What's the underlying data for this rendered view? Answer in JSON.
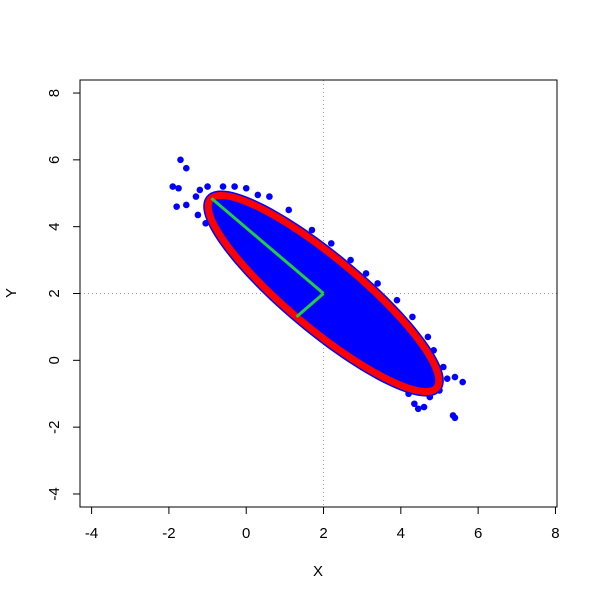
{
  "chart_data": {
    "type": "scatter",
    "x_label": "X",
    "y_label": "Y",
    "xlim": [
      -4.3,
      8.04
    ],
    "ylim": [
      -4.39,
      8.39
    ],
    "xticks": [
      -4,
      -2,
      0,
      2,
      4,
      6,
      8
    ],
    "yticks": [
      -4,
      -2,
      0,
      2,
      4,
      6,
      8
    ],
    "reference_lines": {
      "x": 2,
      "y": 2,
      "color": "#999999"
    },
    "series": [
      {
        "color": "#0000ff",
        "x": [
          -1.7,
          -1.55,
          -1.9,
          -1.75,
          -1.8,
          -1.55,
          -1.3,
          -1.2,
          -1.0,
          -0.6,
          -0.3,
          0.0,
          -1.25,
          -1.05,
          -0.8,
          -0.5,
          -0.2,
          0.1,
          0.5,
          0.6,
          0.8,
          1.2,
          1.35,
          1.7,
          2.3,
          2.7,
          3.0,
          3.4,
          3.7,
          3.95,
          4.2,
          4.35,
          4.45,
          4.6,
          4.75,
          5.0,
          5.2,
          5.4,
          5.6,
          5.35,
          5.4,
          5.1,
          4.85,
          4.7,
          4.3,
          3.9,
          3.4,
          3.1,
          2.7,
          2.2,
          1.7,
          1.1,
          0.6,
          0.3
        ],
        "y": [
          6.0,
          5.75,
          5.2,
          5.15,
          4.6,
          4.65,
          4.9,
          5.1,
          5.2,
          5.2,
          5.2,
          5.15,
          4.35,
          4.1,
          3.95,
          3.7,
          3.5,
          3.2,
          2.7,
          2.35,
          2.0,
          1.7,
          1.3,
          0.9,
          0.6,
          0.3,
          0.1,
          -0.2,
          -0.45,
          -0.7,
          -1.0,
          -1.3,
          -1.45,
          -1.4,
          -1.1,
          -0.9,
          -0.55,
          -0.5,
          -0.65,
          -1.65,
          -1.72,
          -0.2,
          0.3,
          0.7,
          1.3,
          1.8,
          2.3,
          2.6,
          3.0,
          3.5,
          3.9,
          4.5,
          4.9,
          4.95
        ]
      }
    ],
    "ellipse": {
      "center": [
        2,
        2
      ],
      "major_end": [
        -0.9,
        4.85
      ],
      "minor_end": [
        1.3,
        1.3
      ],
      "color": "#ff0000",
      "fill": "#0000ff",
      "axis_color": "#22cc44"
    }
  }
}
